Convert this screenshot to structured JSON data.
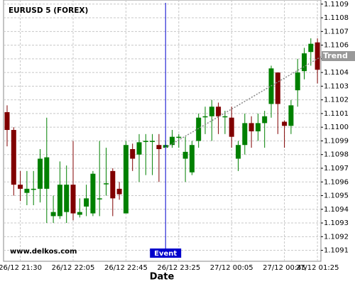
{
  "chart_data": {
    "type": "candlestick",
    "title": "EURUSD 5 (FOREX)",
    "x_label": "Date",
    "watermark": "www.delkos.com",
    "up_color": "#008000",
    "down_color": "#800000",
    "grid": true,
    "categories": [
      null,
      null,
      "26/12 21:30",
      null,
      null,
      null,
      null,
      null,
      null,
      null,
      "26/12 22:05",
      null,
      null,
      null,
      null,
      null,
      null,
      null,
      "26/12 22:45",
      null,
      null,
      null,
      null,
      null,
      null,
      null,
      "26/12 23:25",
      null,
      null,
      null,
      null,
      null,
      null,
      null,
      "27/12 00:05",
      null,
      null,
      null,
      null,
      null,
      null,
      null,
      "27/12 00:45",
      null,
      null,
      null,
      null,
      "27/12 01:25"
    ],
    "open": [
      1.11011,
      1.10998,
      1.10958,
      1.10952,
      1.10955,
      1.10955,
      1.10955,
      1.10935,
      1.10935,
      1.10938,
      1.10958,
      1.10936,
      1.10942,
      1.10937,
      1.10948,
      1.10959,
      1.10968,
      1.10955,
      1.10937,
      1.10984,
      1.1098,
      1.1099,
      1.1099,
      1.10987,
      1.10985,
      1.10987,
      1.10993,
      1.10977,
      1.10967,
      1.1099,
      1.11008,
      1.11008,
      1.11015,
      1.11008,
      1.11007,
      1.10977,
      1.10987,
      1.11003,
      1.10997,
      1.11003,
      1.11017,
      1.1104,
      1.11004,
      1.11001,
      1.11027,
      1.11041,
      1.11055,
      1.11062
    ],
    "high": [
      1.11016,
      1.11,
      1.10968,
      1.10968,
      1.10968,
      1.10984,
      1.11007,
      1.1095,
      1.10975,
      1.10972,
      1.1099,
      1.10948,
      1.10958,
      1.10968,
      1.1099,
      1.10985,
      1.1097,
      1.1096,
      1.1099,
      1.10988,
      1.10995,
      1.10995,
      1.10995,
      1.10995,
      1.1099,
      1.10998,
      1.10995,
      1.10993,
      1.1099,
      1.1101,
      1.11015,
      1.1102,
      1.11018,
      1.11012,
      1.11015,
      1.1099,
      1.1101,
      1.11008,
      1.1101,
      1.11012,
      1.11045,
      1.1104,
      1.11005,
      1.1102,
      1.1105,
      1.11058,
      1.11065,
      1.11065
    ],
    "low": [
      1.10986,
      1.1095,
      1.10946,
      1.10943,
      1.10943,
      1.10945,
      1.1093,
      1.1093,
      1.10933,
      1.1093,
      1.10932,
      1.10934,
      1.10935,
      1.10935,
      1.10935,
      1.1095,
      1.10935,
      1.10947,
      1.10937,
      1.10968,
      1.1096,
      1.10965,
      1.10965,
      1.1096,
      1.10985,
      1.10985,
      1.10985,
      1.1096,
      1.10965,
      1.10985,
      1.10995,
      1.1099,
      1.10995,
      1.10995,
      1.10985,
      1.10968,
      1.1098,
      1.10985,
      1.1099,
      1.10985,
      1.11007,
      1.10995,
      1.10985,
      1.10995,
      1.11015,
      1.11035,
      1.11045,
      1.11032
    ],
    "close": [
      1.10998,
      1.10958,
      1.10955,
      1.10955,
      1.10955,
      1.10977,
      1.10978,
      1.10938,
      1.10958,
      1.10958,
      1.10937,
      1.10938,
      1.10948,
      1.10966,
      1.10948,
      1.10959,
      1.10948,
      1.10951,
      1.10987,
      1.10977,
      1.10989,
      1.1099,
      1.1099,
      1.10984,
      1.10987,
      1.10993,
      1.10993,
      1.10982,
      1.10987,
      1.11007,
      1.11008,
      1.11015,
      1.11008,
      1.11008,
      1.10993,
      1.10987,
      1.11003,
      1.10997,
      1.11003,
      1.11008,
      1.11043,
      1.11017,
      1.11001,
      1.11016,
      1.1104,
      1.11054,
      1.11061,
      1.11042
    ],
    "ylim": [
      1.10902,
      1.11093
    ],
    "yticks": [
      1.1091,
      1.1092,
      1.1093,
      1.1094,
      1.1095,
      1.1096,
      1.1097,
      1.1098,
      1.1099,
      {
        "value": 1.11,
        "label": "1.1100"
      },
      1.1101,
      1.1102,
      1.1103,
      1.1104,
      1.1105,
      1.1106,
      1.1107,
      1.1108,
      1.1109
    ],
    "event": {
      "label": "Event",
      "index": 24,
      "color": "#0000cc"
    },
    "trend": {
      "label": "Trend",
      "start_index": 24,
      "start_value": 1.10985,
      "end_index": 47.7,
      "end_value": 1.11052
    }
  }
}
